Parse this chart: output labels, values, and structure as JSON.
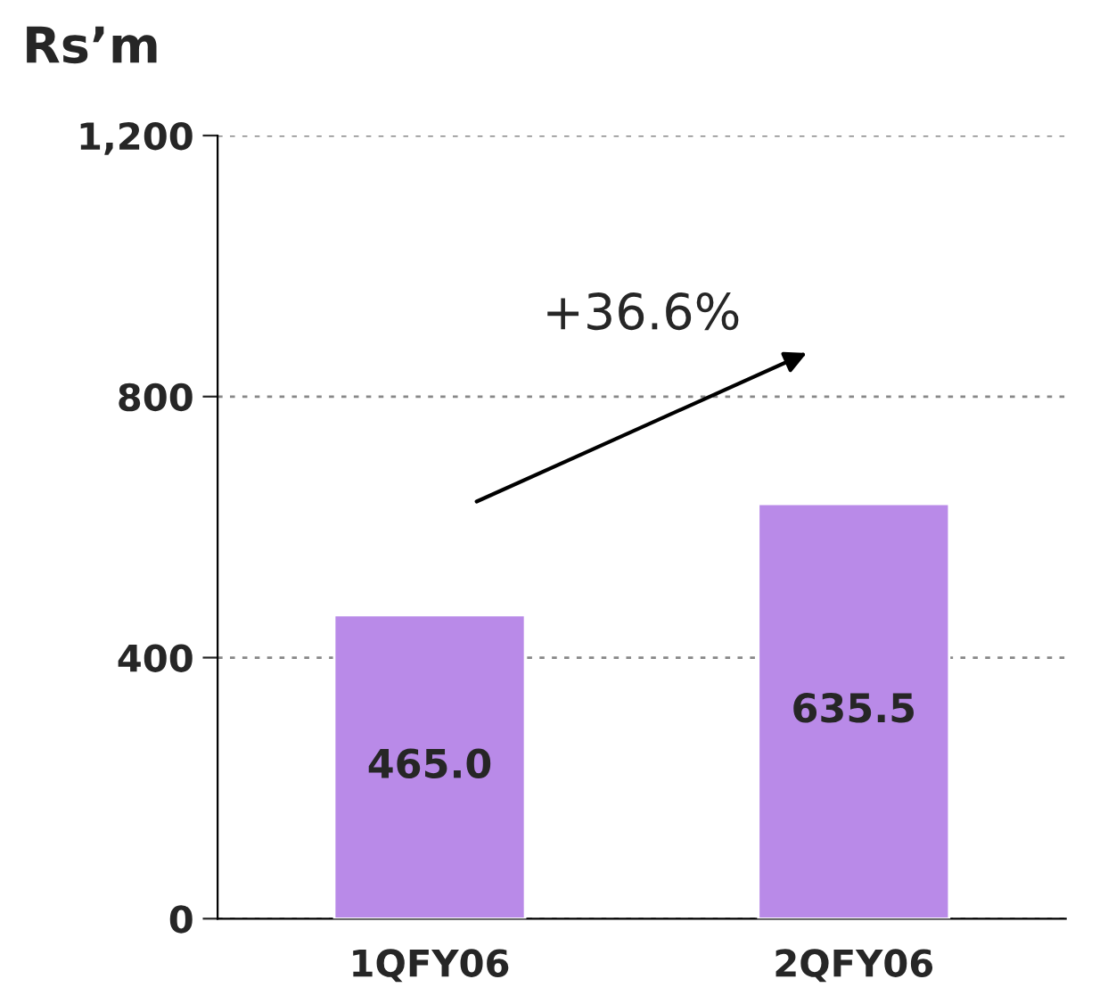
{
  "chart_data": {
    "type": "bar",
    "ylabel": "Rs’m",
    "categories": [
      "1QFY06",
      "2QFY06"
    ],
    "values": [
      465.0,
      635.5
    ],
    "value_labels": [
      "465.0",
      "635.5"
    ],
    "color": "#b98ae8",
    "ylim": [
      0,
      1200
    ],
    "yticks": [
      0,
      400,
      800,
      {
        "value": 1200,
        "label": "1,200"
      }
    ],
    "grid": "y",
    "annotations": [
      "+36.6%"
    ]
  }
}
